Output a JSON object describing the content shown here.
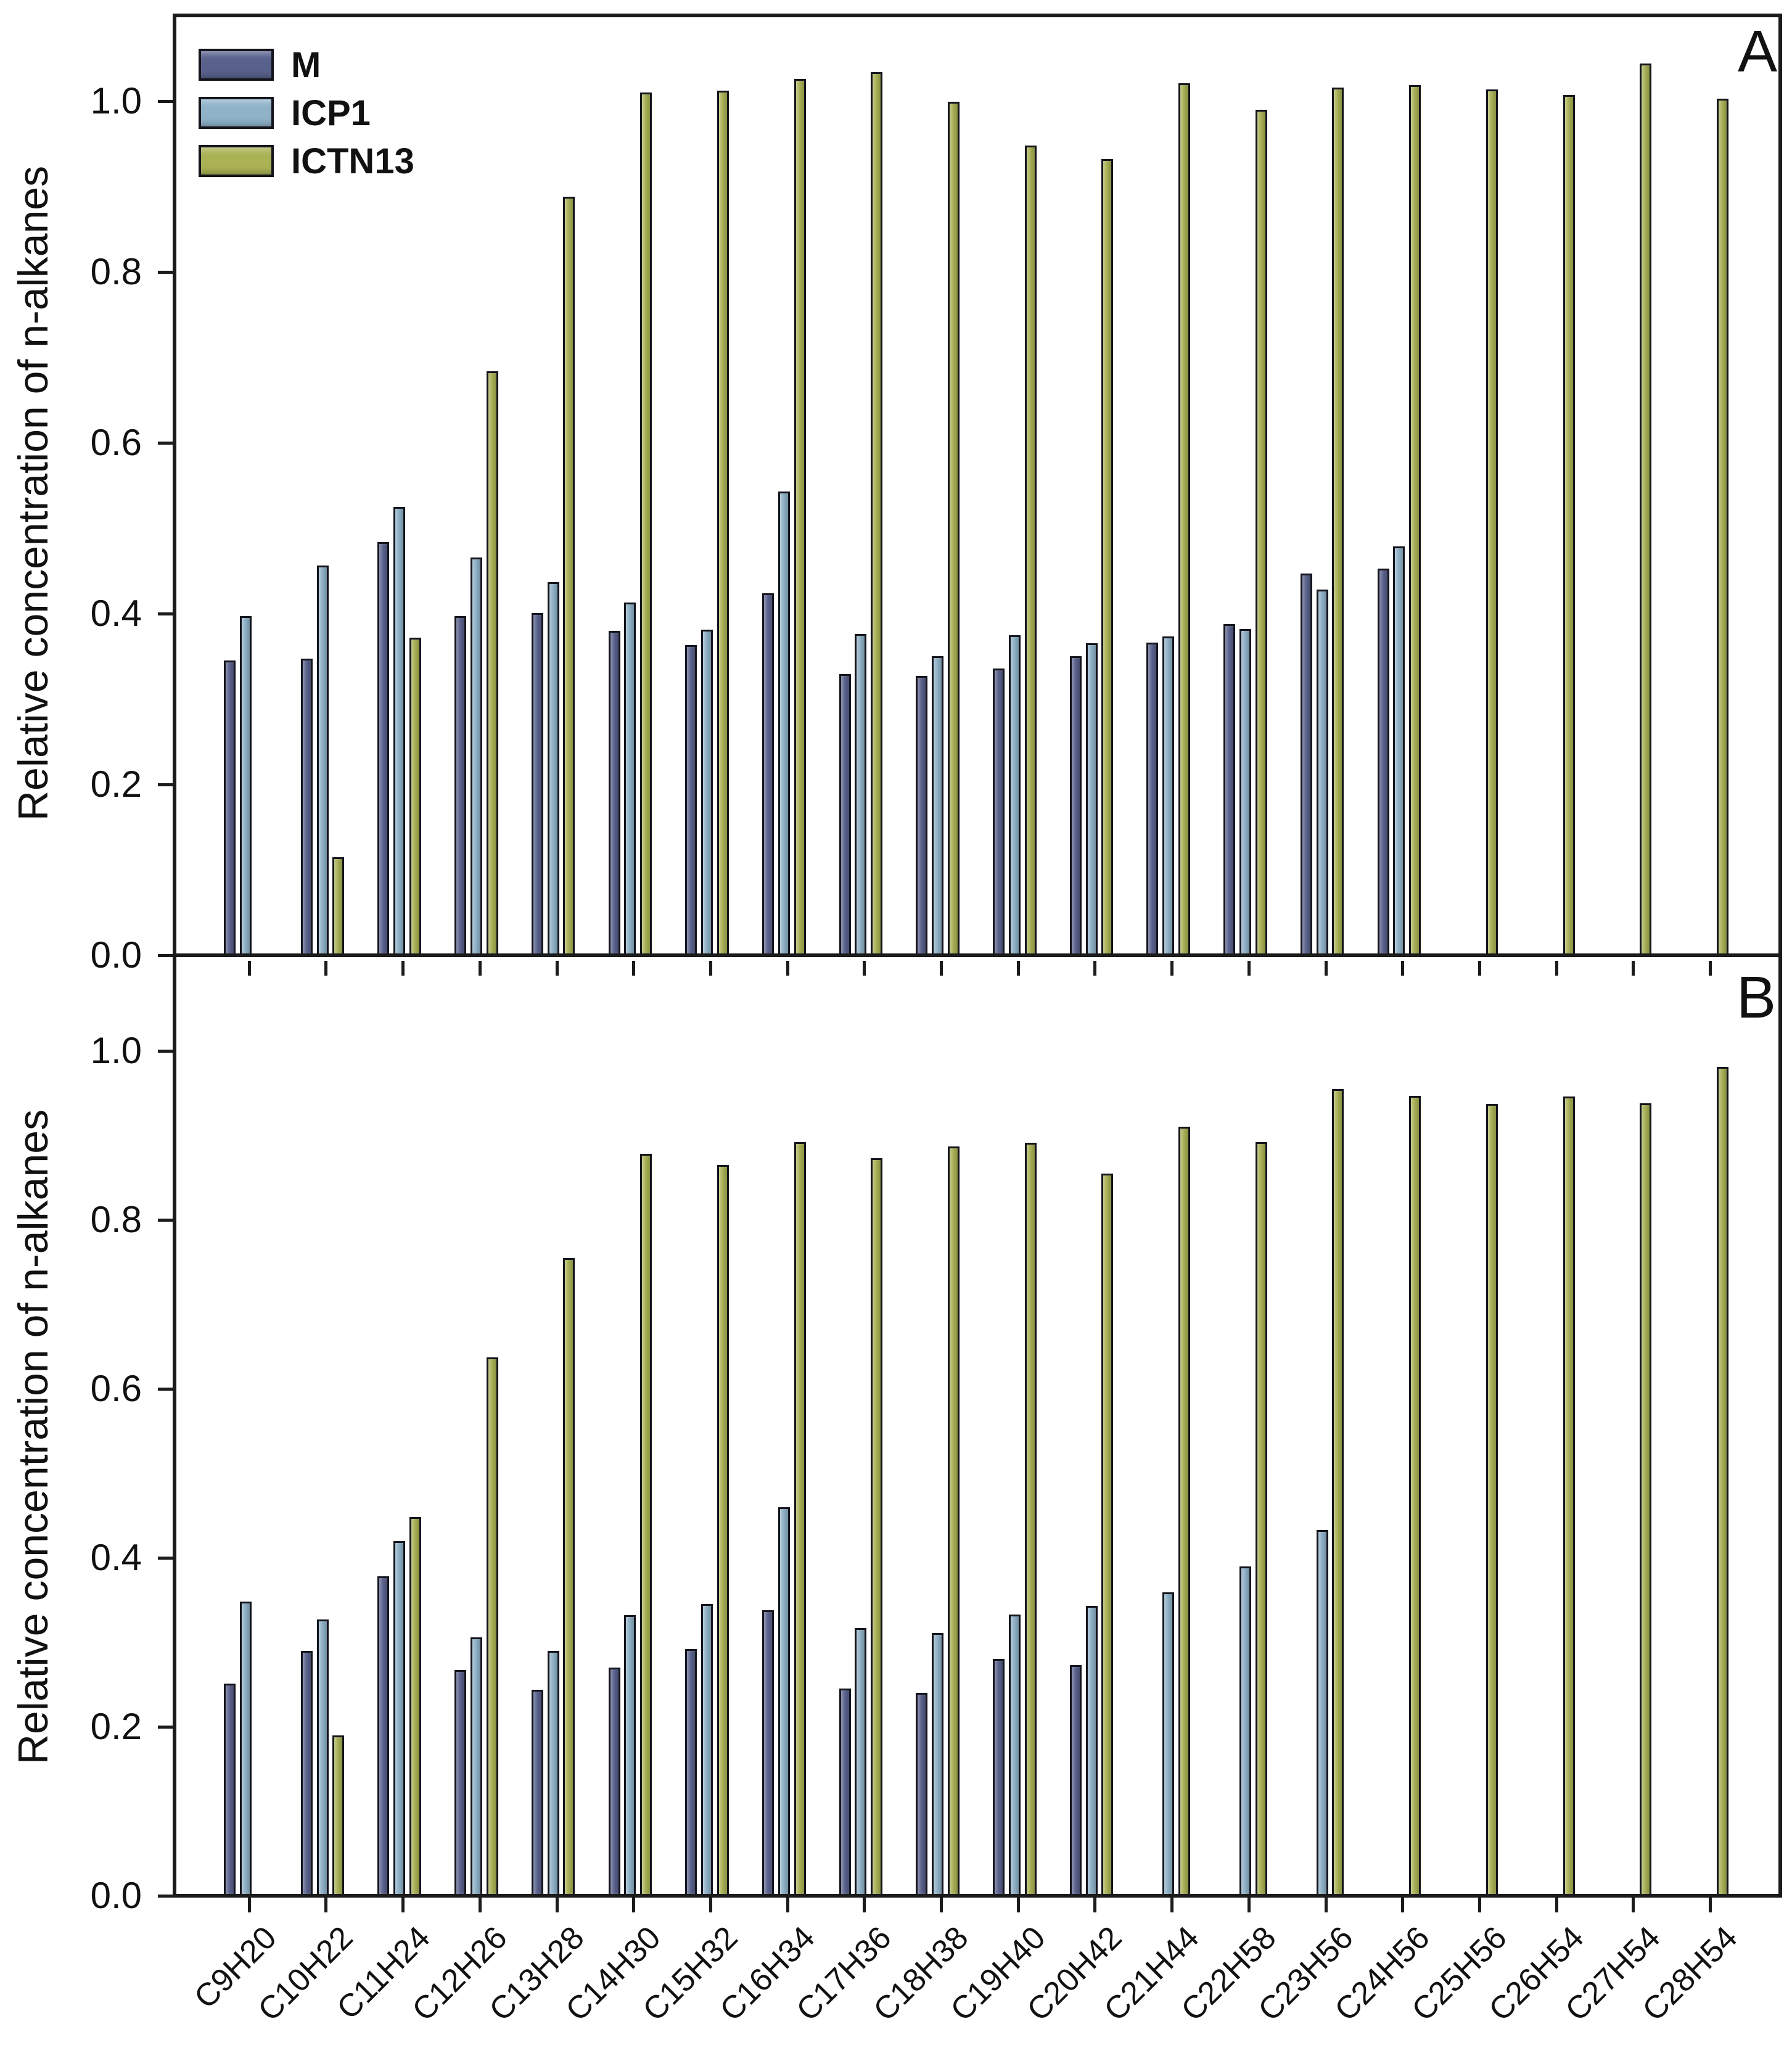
{
  "figure": {
    "ylabel_a": "Relative concentration of n-alkanes",
    "ylabel_b": "Relative concentration of n-alkanes",
    "panel_a_letter": "A",
    "panel_b_letter": "B",
    "legend": {
      "items": [
        {
          "label": "M",
          "color": "#59618d"
        },
        {
          "label": "ICP1",
          "color": "#8fb2c9"
        },
        {
          "label": "ICTN13",
          "color": "#aab254"
        }
      ]
    }
  },
  "chart_data": [
    {
      "type": "bar",
      "panel": "A",
      "title": "",
      "xlabel": "",
      "ylabel": "Relative concentration of n-alkanes",
      "ylim": [
        0.0,
        1.1
      ],
      "yticks": [
        0.0,
        0.2,
        0.4,
        0.6,
        0.8,
        1.0
      ],
      "grid": false,
      "legend_position": "top-left",
      "categories": [
        "C9H20",
        "C10H22",
        "C11H24",
        "C12H26",
        "C13H28",
        "C14H30",
        "C15H32",
        "C16H34",
        "C17H36",
        "C18H38",
        "C19H40",
        "C20H42",
        "C21H44",
        "C22H58",
        "C23H56",
        "C24H56",
        "C25H56",
        "C26H54",
        "C27H54",
        "C28H54"
      ],
      "series": [
        {
          "name": "M",
          "color": "#59618d",
          "values": [
            0.345,
            0.347,
            0.484,
            0.397,
            0.401,
            0.38,
            0.363,
            0.424,
            0.329,
            0.327,
            0.336,
            0.35,
            0.366,
            0.388,
            0.447,
            0.453,
            null,
            null,
            null,
            null
          ]
        },
        {
          "name": "ICP1",
          "color": "#8fb2c9",
          "values": [
            0.397,
            0.456,
            0.525,
            0.466,
            0.437,
            0.413,
            0.381,
            0.543,
            0.376,
            0.35,
            0.375,
            0.365,
            0.373,
            0.382,
            0.428,
            0.479,
            null,
            null,
            null,
            null
          ]
        },
        {
          "name": "ICTN13",
          "color": "#aab254",
          "values": [
            null,
            0.115,
            0.372,
            0.684,
            0.888,
            1.01,
            1.012,
            1.026,
            1.034,
            0.999,
            0.948,
            0.932,
            1.021,
            0.99,
            1.016,
            1.019,
            1.014,
            1.007,
            1.044,
            1.003
          ]
        }
      ]
    },
    {
      "type": "bar",
      "panel": "B",
      "title": "",
      "xlabel": "",
      "ylabel": "Relative concentration of n-alkanes",
      "ylim": [
        0.0,
        1.1
      ],
      "yticks": [
        0.0,
        0.2,
        0.4,
        0.6,
        0.8,
        1.0
      ],
      "grid": false,
      "legend_position": "none",
      "categories": [
        "C9H20",
        "C10H22",
        "C11H24",
        "C12H26",
        "C13H28",
        "C14H30",
        "C15H32",
        "C16H34",
        "C17H36",
        "C18H38",
        "C19H40",
        "C20H42",
        "C21H44",
        "C22H58",
        "C23H56",
        "C24H56",
        "C25H56",
        "C26H54",
        "C27H54",
        "C28H54"
      ],
      "series": [
        {
          "name": "M",
          "color": "#59618d",
          "values": [
            0.251,
            0.29,
            0.378,
            0.267,
            0.244,
            0.27,
            0.292,
            0.338,
            0.245,
            0.24,
            0.28,
            0.273,
            null,
            null,
            null,
            null,
            null,
            null,
            null,
            null
          ]
        },
        {
          "name": "ICP1",
          "color": "#8fb2c9",
          "values": [
            0.348,
            0.327,
            0.42,
            0.306,
            0.29,
            0.332,
            0.345,
            0.46,
            0.317,
            0.311,
            0.333,
            0.343,
            0.359,
            0.39,
            0.433,
            null,
            null,
            null,
            null,
            null
          ]
        },
        {
          "name": "ICTN13",
          "color": "#aab254",
          "values": [
            null,
            0.19,
            0.448,
            0.637,
            0.755,
            0.878,
            0.865,
            0.892,
            0.873,
            0.887,
            0.891,
            0.855,
            0.91,
            0.892,
            0.955,
            0.947,
            0.937,
            0.946,
            0.938,
            0.981
          ]
        }
      ]
    }
  ]
}
